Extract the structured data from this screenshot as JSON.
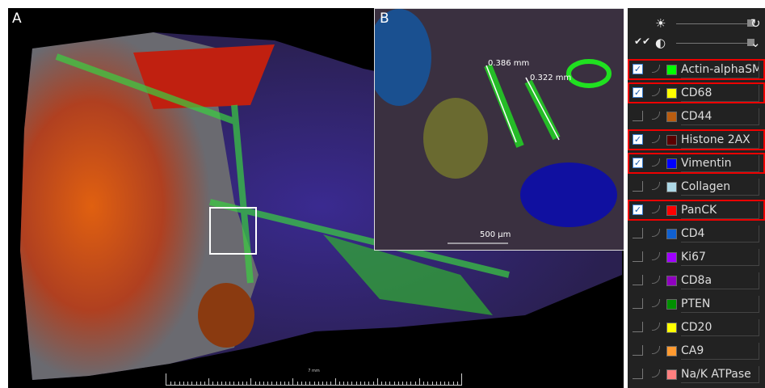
{
  "panels": {
    "main_label": "A",
    "inset_label": "B"
  },
  "inset": {
    "measurements": [
      "0.386 mm",
      "0.322 mm"
    ],
    "scale_label": "500 µm"
  },
  "main": {
    "scale_label": "7 mm"
  },
  "controls": {
    "brightness_icon": "sun-icon",
    "reset_icon": "rotate-icon",
    "contrast_icon": "contrast-icon",
    "select_all_icon": "double-check-icon",
    "expand_icon": "chevron-down-icon",
    "brightness_level": 0.5,
    "contrast_level": 0.5
  },
  "channels": [
    {
      "name": "Actin-alphaSMA",
      "color": "#00ff00",
      "checked": true
    },
    {
      "name": "CD68",
      "color": "#ffff00",
      "checked": true
    },
    {
      "name": "CD44",
      "color": "#b85c10",
      "checked": false
    },
    {
      "name": "Histone 2AX",
      "color": "#5a0000",
      "checked": true
    },
    {
      "name": "Vimentin",
      "color": "#0000ff",
      "checked": true
    },
    {
      "name": "Collagen",
      "color": "#add8e6",
      "checked": false
    },
    {
      "name": "PanCK",
      "color": "#ff0000",
      "checked": true
    },
    {
      "name": "CD4",
      "color": "#1060d0",
      "checked": false
    },
    {
      "name": "Ki67",
      "color": "#a000ff",
      "checked": false
    },
    {
      "name": "CD8a",
      "color": "#9000c0",
      "checked": false
    },
    {
      "name": "PTEN",
      "color": "#009000",
      "checked": false
    },
    {
      "name": "CD20",
      "color": "#ffff00",
      "checked": false
    },
    {
      "name": "CA9",
      "color": "#ff9a30",
      "checked": false
    },
    {
      "name": "Na/K ATPase",
      "color": "#ff8080",
      "checked": false
    }
  ]
}
